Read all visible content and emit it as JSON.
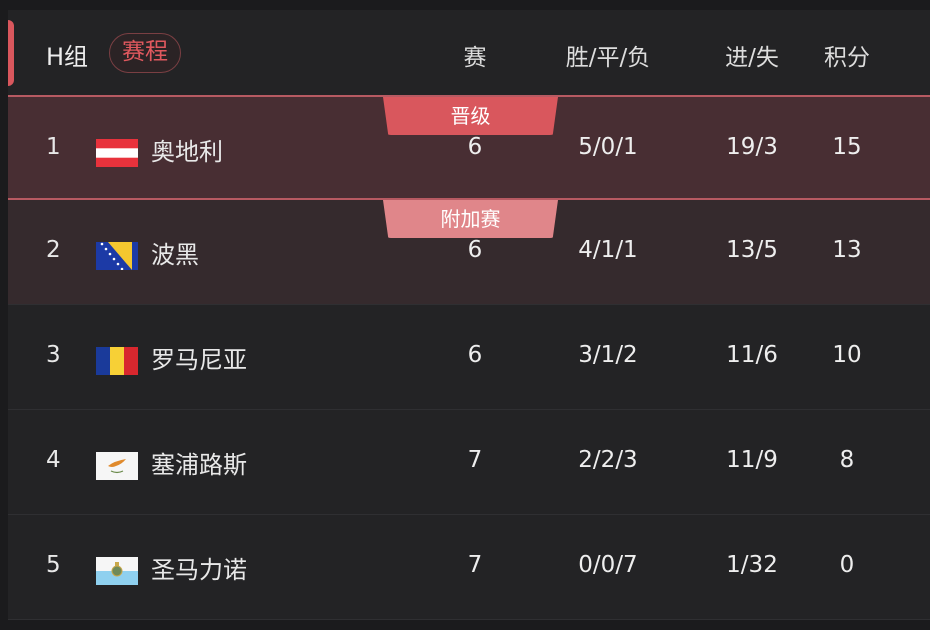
{
  "header": {
    "group": "H组",
    "schedule_button": "赛程",
    "columns": [
      "赛",
      "胜/平/负",
      "进/失",
      "积分"
    ]
  },
  "colors": {
    "accent": "#d9575d",
    "promote_row": "#482e33",
    "playoff_row": "#352a2d",
    "promote_badge": "#d9575d",
    "playoff_badge": "#e0868a"
  },
  "rows": [
    {
      "rank": "1",
      "team": "奥地利",
      "flag": "austria-flag",
      "played": "6",
      "wdl": "5/0/1",
      "goals": "19/3",
      "points": "15",
      "badge": "晋级"
    },
    {
      "rank": "2",
      "team": "波黑",
      "flag": "bosnia-flag",
      "played": "6",
      "wdl": "4/1/1",
      "goals": "13/5",
      "points": "13",
      "badge": "附加赛"
    },
    {
      "rank": "3",
      "team": "罗马尼亚",
      "flag": "romania-flag",
      "played": "6",
      "wdl": "3/1/2",
      "goals": "11/6",
      "points": "10"
    },
    {
      "rank": "4",
      "team": "塞浦路斯",
      "flag": "cyprus-flag",
      "played": "7",
      "wdl": "2/2/3",
      "goals": "11/9",
      "points": "8"
    },
    {
      "rank": "5",
      "team": "圣马力诺",
      "flag": "san-marino-flag",
      "played": "7",
      "wdl": "0/0/7",
      "goals": "1/32",
      "points": "0"
    }
  ]
}
